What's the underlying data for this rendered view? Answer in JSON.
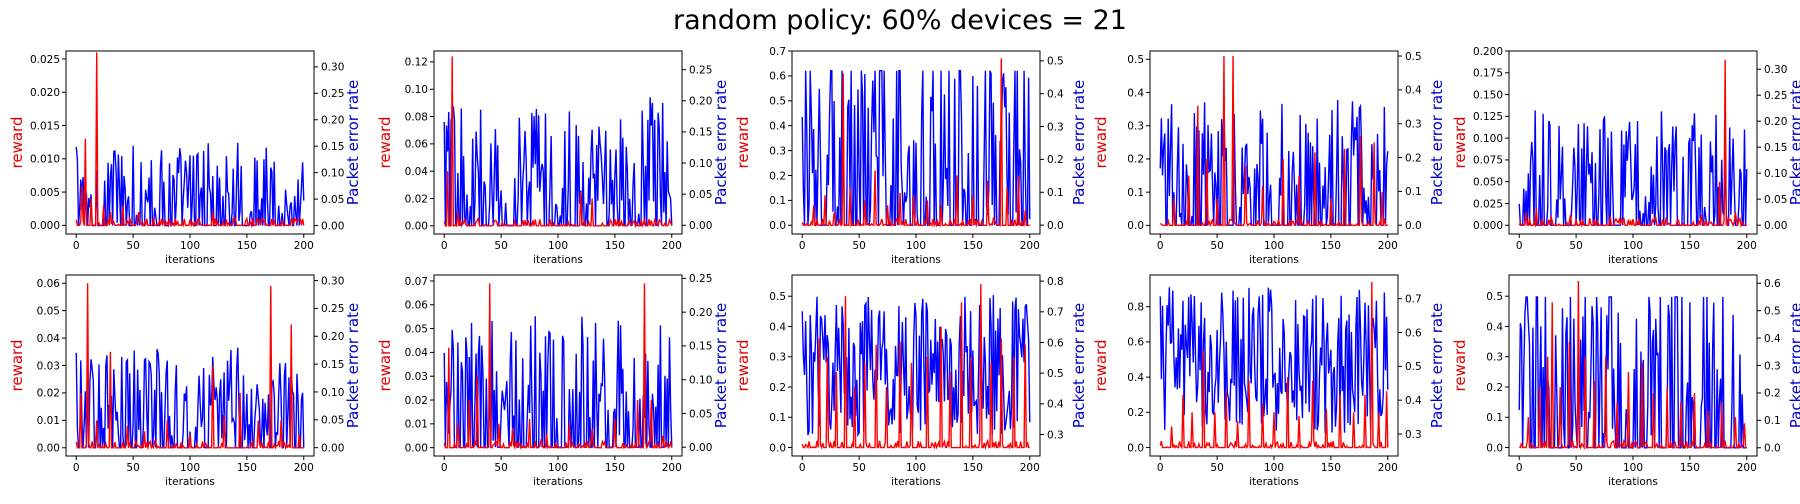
{
  "title": "random policy: 60% devices = 21",
  "colors": {
    "reward": "#ff0000",
    "per": "#0000ff",
    "left_label": "#e00000",
    "right_label": "#0000cc"
  },
  "chart_data": [
    {
      "type": "line",
      "xlabel": "iterations",
      "ylabel": "reward",
      "y2label": "Packet error rate",
      "xlim": [
        -9,
        209
      ],
      "xticks": [
        0,
        50,
        100,
        150,
        200
      ],
      "ylim": [
        -0.0013,
        0.0262
      ],
      "yticks": [
        0.0,
        0.005,
        0.01,
        0.015,
        0.02,
        0.025
      ],
      "ytick_labels": [
        "0.000",
        "0.005",
        "0.010",
        "0.015",
        "0.020",
        "0.025"
      ],
      "y2lim": [
        -0.016,
        0.33
      ],
      "y2ticks": [
        0.0,
        0.05,
        0.1,
        0.15,
        0.2,
        0.25,
        0.3
      ],
      "y2tick_labels": [
        "0.00",
        "0.05",
        "0.10",
        "0.15",
        "0.20",
        "0.25",
        "0.30"
      ],
      "reward_peaks": [
        [
          5,
          0.006
        ],
        [
          8,
          0.013
        ],
        [
          13,
          0.004
        ],
        [
          18,
          0.026
        ],
        [
          24,
          0.003
        ],
        [
          30,
          0.002
        ],
        [
          41,
          0.003
        ],
        [
          55,
          0.002
        ],
        [
          62,
          0.001
        ],
        [
          75,
          0.001
        ],
        [
          95,
          0.001
        ],
        [
          120,
          0.002
        ],
        [
          150,
          0.001
        ],
        [
          172,
          0.001
        ],
        [
          190,
          0.001
        ]
      ],
      "per_mean": 0.07,
      "per_peak": 0.25
    },
    {
      "type": "line",
      "xlabel": "iterations",
      "ylabel": "reward",
      "y2label": "Packet error rate",
      "xlim": [
        -9,
        209
      ],
      "xticks": [
        0,
        50,
        100,
        150,
        200
      ],
      "ylim": [
        -0.006,
        0.128
      ],
      "yticks": [
        0.0,
        0.02,
        0.04,
        0.06,
        0.08,
        0.1,
        0.12
      ],
      "ytick_labels": [
        "0.00",
        "0.02",
        "0.04",
        "0.06",
        "0.08",
        "0.10",
        "0.12"
      ],
      "y2lim": [
        -0.014,
        0.28
      ],
      "y2ticks": [
        0.0,
        0.05,
        0.1,
        0.15,
        0.2,
        0.25
      ],
      "y2tick_labels": [
        "0.00",
        "0.05",
        "0.10",
        "0.15",
        "0.20",
        "0.25"
      ],
      "reward_peaks": [
        [
          3,
          0.04
        ],
        [
          7,
          0.124
        ],
        [
          12,
          0.01
        ],
        [
          18,
          0.005
        ],
        [
          30,
          0.006
        ],
        [
          45,
          0.004
        ],
        [
          62,
          0.003
        ],
        [
          78,
          0.004
        ],
        [
          96,
          0.002
        ],
        [
          120,
          0.025
        ],
        [
          123,
          0.004
        ],
        [
          130,
          0.02
        ],
        [
          152,
          0.003
        ],
        [
          173,
          0.004
        ],
        [
          190,
          0.003
        ]
      ],
      "per_mean": 0.09,
      "per_peak": 0.25
    },
    {
      "type": "line",
      "xlabel": "iterations",
      "ylabel": "reward",
      "y2label": "Packet error rate",
      "xlim": [
        -9,
        209
      ],
      "xticks": [
        0,
        50,
        100,
        150,
        200
      ],
      "ylim": [
        -0.035,
        0.7
      ],
      "yticks": [
        0.0,
        0.1,
        0.2,
        0.3,
        0.4,
        0.5,
        0.6,
        0.7
      ],
      "ytick_labels": [
        "0.0",
        "0.1",
        "0.2",
        "0.3",
        "0.4",
        "0.5",
        "0.6",
        "0.7"
      ],
      "y2lim": [
        -0.027,
        0.53
      ],
      "y2ticks": [
        0.0,
        0.1,
        0.2,
        0.3,
        0.4,
        0.5
      ],
      "y2tick_labels": [
        "0.0",
        "0.1",
        "0.2",
        "0.3",
        "0.4",
        "0.5"
      ],
      "reward_peaks": [
        [
          10,
          0.08
        ],
        [
          20,
          0.12
        ],
        [
          28,
          0.05
        ],
        [
          36,
          0.61
        ],
        [
          42,
          0.15
        ],
        [
          55,
          0.1
        ],
        [
          64,
          0.22
        ],
        [
          75,
          0.08
        ],
        [
          86,
          0.13
        ],
        [
          98,
          0.12
        ],
        [
          110,
          0.1
        ],
        [
          122,
          0.08
        ],
        [
          136,
          0.2
        ],
        [
          150,
          0.12
        ],
        [
          163,
          0.18
        ],
        [
          175,
          0.67
        ],
        [
          180,
          0.15
        ],
        [
          190,
          0.2
        ],
        [
          196,
          0.06
        ]
      ],
      "per_mean": 0.26,
      "per_peak": 0.47
    },
    {
      "type": "line",
      "xlabel": "iterations",
      "ylabel": "reward",
      "y2label": "Packet error rate",
      "xlim": [
        -9,
        209
      ],
      "xticks": [
        0,
        50,
        100,
        150,
        200
      ],
      "ylim": [
        -0.026,
        0.525
      ],
      "yticks": [
        0.0,
        0.1,
        0.2,
        0.3,
        0.4,
        0.5
      ],
      "ytick_labels": [
        "0.0",
        "0.1",
        "0.2",
        "0.3",
        "0.4",
        "0.5"
      ],
      "y2lim": [
        -0.026,
        0.515
      ],
      "y2ticks": [
        0.0,
        0.1,
        0.2,
        0.3,
        0.4,
        0.5
      ],
      "y2tick_labels": [
        "0.0",
        "0.1",
        "0.2",
        "0.3",
        "0.4",
        "0.5"
      ],
      "reward_peaks": [
        [
          12,
          0.08
        ],
        [
          25,
          0.15
        ],
        [
          33,
          0.36
        ],
        [
          41,
          0.2
        ],
        [
          50,
          0.08
        ],
        [
          56,
          0.51
        ],
        [
          64,
          0.51
        ],
        [
          75,
          0.18
        ],
        [
          90,
          0.12
        ],
        [
          108,
          0.2
        ],
        [
          122,
          0.15
        ],
        [
          136,
          0.22
        ],
        [
          150,
          0.08
        ],
        [
          162,
          0.23
        ],
        [
          176,
          0.27
        ],
        [
          188,
          0.25
        ],
        [
          195,
          0.1
        ]
      ],
      "per_mean": 0.17,
      "per_peak": 0.41
    },
    {
      "type": "line",
      "xlabel": "iterations",
      "ylabel": "reward",
      "y2label": "Packet error rate",
      "xlim": [
        -9,
        209
      ],
      "xticks": [
        0,
        50,
        100,
        150,
        200
      ],
      "ylim": [
        -0.01,
        0.2
      ],
      "yticks": [
        0.0,
        0.025,
        0.05,
        0.075,
        0.1,
        0.125,
        0.15,
        0.175,
        0.2
      ],
      "ytick_labels": [
        "0.000",
        "0.025",
        "0.050",
        "0.075",
        "0.100",
        "0.125",
        "0.150",
        "0.175",
        "0.200"
      ],
      "y2lim": [
        -0.017,
        0.335
      ],
      "y2ticks": [
        0.0,
        0.05,
        0.1,
        0.15,
        0.2,
        0.25,
        0.3
      ],
      "y2tick_labels": [
        "0.00",
        "0.05",
        "0.10",
        "0.15",
        "0.20",
        "0.25",
        "0.30"
      ],
      "reward_peaks": [
        [
          6,
          0.015
        ],
        [
          15,
          0.02
        ],
        [
          28,
          0.01
        ],
        [
          45,
          0.012
        ],
        [
          62,
          0.008
        ],
        [
          80,
          0.01
        ],
        [
          100,
          0.007
        ],
        [
          120,
          0.009
        ],
        [
          140,
          0.006
        ],
        [
          160,
          0.012
        ],
        [
          176,
          0.05
        ],
        [
          181,
          0.19
        ],
        [
          190,
          0.015
        ]
      ],
      "per_mean": 0.1,
      "per_peak": 0.31
    },
    {
      "type": "line",
      "xlabel": "iterations",
      "ylabel": "reward",
      "y2label": "Packet error rate",
      "xlim": [
        -9,
        209
      ],
      "xticks": [
        0,
        50,
        100,
        150,
        200
      ],
      "ylim": [
        -0.003,
        0.063
      ],
      "yticks": [
        0.0,
        0.01,
        0.02,
        0.03,
        0.04,
        0.05,
        0.06
      ],
      "ytick_labels": [
        "0.00",
        "0.01",
        "0.02",
        "0.03",
        "0.04",
        "0.05",
        "0.06"
      ],
      "y2lim": [
        -0.015,
        0.31
      ],
      "y2ticks": [
        0.0,
        0.05,
        0.1,
        0.15,
        0.2,
        0.25,
        0.3
      ],
      "y2tick_labels": [
        "0.00",
        "0.05",
        "0.10",
        "0.15",
        "0.20",
        "0.25",
        "0.30"
      ],
      "reward_peaks": [
        [
          4,
          0.02
        ],
        [
          10,
          0.06
        ],
        [
          18,
          0.01
        ],
        [
          30,
          0.035
        ],
        [
          45,
          0.008
        ],
        [
          60,
          0.006
        ],
        [
          80,
          0.01
        ],
        [
          100,
          0.005
        ],
        [
          120,
          0.03
        ],
        [
          130,
          0.012
        ],
        [
          144,
          0.02
        ],
        [
          160,
          0.01
        ],
        [
          171,
          0.059
        ],
        [
          180,
          0.01
        ],
        [
          189,
          0.045
        ],
        [
          196,
          0.005
        ]
      ],
      "per_mean": 0.08,
      "per_peak": 0.28
    },
    {
      "type": "line",
      "xlabel": "iterations",
      "ylabel": "reward",
      "y2label": "Packet error rate",
      "xlim": [
        -9,
        209
      ],
      "xticks": [
        0,
        50,
        100,
        150,
        200
      ],
      "ylim": [
        -0.0035,
        0.0725
      ],
      "yticks": [
        0.0,
        0.01,
        0.02,
        0.03,
        0.04,
        0.05,
        0.06,
        0.07
      ],
      "ytick_labels": [
        "0.00",
        "0.01",
        "0.02",
        "0.03",
        "0.04",
        "0.05",
        "0.06",
        "0.07"
      ],
      "y2lim": [
        -0.013,
        0.255
      ],
      "y2ticks": [
        0.0,
        0.05,
        0.1,
        0.15,
        0.2,
        0.25
      ],
      "y2tick_labels": [
        "0.00",
        "0.05",
        "0.10",
        "0.15",
        "0.20",
        "0.25"
      ],
      "reward_peaks": [
        [
          4,
          0.042
        ],
        [
          12,
          0.01
        ],
        [
          22,
          0.02
        ],
        [
          29,
          0.03
        ],
        [
          40,
          0.069
        ],
        [
          48,
          0.01
        ],
        [
          60,
          0.008
        ],
        [
          75,
          0.012
        ],
        [
          90,
          0.006
        ],
        [
          110,
          0.01
        ],
        [
          130,
          0.008
        ],
        [
          150,
          0.012
        ],
        [
          170,
          0.02
        ],
        [
          176,
          0.069
        ],
        [
          182,
          0.02
        ],
        [
          192,
          0.005
        ]
      ],
      "per_mean": 0.09,
      "per_peak": 0.25
    },
    {
      "type": "line",
      "xlabel": "iterations",
      "ylabel": "reward",
      "y2label": "Packet error rate",
      "xlim": [
        -9,
        209
      ],
      "xticks": [
        0,
        50,
        100,
        150,
        200
      ],
      "ylim": [
        -0.028,
        0.57
      ],
      "yticks": [
        0.0,
        0.1,
        0.2,
        0.3,
        0.4,
        0.5
      ],
      "ytick_labels": [
        "0.0",
        "0.1",
        "0.2",
        "0.3",
        "0.4",
        "0.5"
      ],
      "y2lim": [
        0.23,
        0.82
      ],
      "y2ticks": [
        0.3,
        0.4,
        0.5,
        0.6,
        0.7,
        0.8
      ],
      "y2tick_labels": [
        "0.3",
        "0.4",
        "0.5",
        "0.6",
        "0.7",
        "0.8"
      ],
      "reward_peaks": [
        [
          15,
          0.36
        ],
        [
          22,
          0.3
        ],
        [
          30,
          0.25
        ],
        [
          38,
          0.5
        ],
        [
          46,
          0.2
        ],
        [
          55,
          0.28
        ],
        [
          65,
          0.34
        ],
        [
          74,
          0.2
        ],
        [
          86,
          0.35
        ],
        [
          96,
          0.28
        ],
        [
          110,
          0.3
        ],
        [
          122,
          0.4
        ],
        [
          130,
          0.25
        ],
        [
          140,
          0.48
        ],
        [
          148,
          0.3
        ],
        [
          157,
          0.54
        ],
        [
          166,
          0.28
        ],
        [
          175,
          0.36
        ],
        [
          186,
          0.3
        ],
        [
          196,
          0.34
        ]
      ],
      "per_mean": 0.52,
      "per_peak": 0.77
    },
    {
      "type": "line",
      "xlabel": "iterations",
      "ylabel": "reward",
      "y2label": "Packet error rate",
      "xlim": [
        -9,
        209
      ],
      "xticks": [
        0,
        50,
        100,
        150,
        200
      ],
      "ylim": [
        -0.048,
        0.98
      ],
      "yticks": [
        0.0,
        0.2,
        0.4,
        0.6,
        0.8
      ],
      "ytick_labels": [
        "0.0",
        "0.2",
        "0.4",
        "0.6",
        "0.8"
      ],
      "y2lim": [
        0.235,
        0.77
      ],
      "y2ticks": [
        0.3,
        0.4,
        0.5,
        0.6,
        0.7
      ],
      "y2tick_labels": [
        "0.3",
        "0.4",
        "0.5",
        "0.6",
        "0.7"
      ],
      "reward_peaks": [
        [
          10,
          0.12
        ],
        [
          20,
          0.3
        ],
        [
          28,
          0.2
        ],
        [
          38,
          0.55
        ],
        [
          48,
          0.2
        ],
        [
          58,
          0.32
        ],
        [
          68,
          0.15
        ],
        [
          78,
          0.38
        ],
        [
          90,
          0.25
        ],
        [
          100,
          0.2
        ],
        [
          112,
          0.4
        ],
        [
          122,
          0.18
        ],
        [
          134,
          0.38
        ],
        [
          146,
          0.22
        ],
        [
          158,
          0.3
        ],
        [
          170,
          0.2
        ],
        [
          180,
          0.3
        ],
        [
          186,
          0.94
        ],
        [
          192,
          0.2
        ],
        [
          199,
          0.32
        ]
      ],
      "per_mean": 0.52,
      "per_peak": 0.74
    },
    {
      "type": "line",
      "xlabel": "iterations",
      "ylabel": "reward",
      "y2label": "Packet error rate",
      "xlim": [
        -9,
        209
      ],
      "xticks": [
        0,
        50,
        100,
        150,
        200
      ],
      "ylim": [
        -0.028,
        0.57
      ],
      "yticks": [
        0.0,
        0.1,
        0.2,
        0.3,
        0.4,
        0.5
      ],
      "ytick_labels": [
        "0.0",
        "0.1",
        "0.2",
        "0.3",
        "0.4",
        "0.5"
      ],
      "y2lim": [
        -0.03,
        0.63
      ],
      "y2ticks": [
        0.0,
        0.1,
        0.2,
        0.3,
        0.4,
        0.5,
        0.6
      ],
      "y2tick_labels": [
        "0.0",
        "0.1",
        "0.2",
        "0.3",
        "0.4",
        "0.5",
        "0.6"
      ],
      "reward_peaks": [
        [
          8,
          0.1
        ],
        [
          18,
          0.2
        ],
        [
          25,
          0.3
        ],
        [
          29,
          0.48
        ],
        [
          36,
          0.2
        ],
        [
          44,
          0.35
        ],
        [
          52,
          0.55
        ],
        [
          58,
          0.3
        ],
        [
          66,
          0.22
        ],
        [
          76,
          0.3
        ],
        [
          86,
          0.15
        ],
        [
          96,
          0.25
        ],
        [
          108,
          0.28
        ],
        [
          118,
          0.18
        ],
        [
          130,
          0.2
        ],
        [
          142,
          0.15
        ],
        [
          154,
          0.18
        ],
        [
          166,
          0.12
        ],
        [
          178,
          0.15
        ],
        [
          190,
          0.1
        ],
        [
          198,
          0.08
        ]
      ],
      "per_mean": 0.33,
      "per_peak": 0.55
    }
  ]
}
